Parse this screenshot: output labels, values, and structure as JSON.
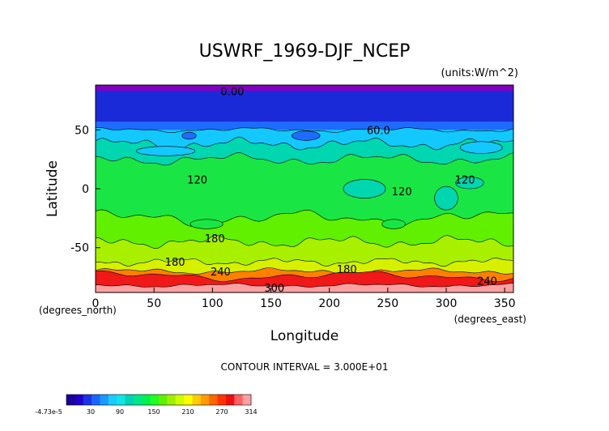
{
  "chart_data": {
    "type": "heatmap",
    "title": "USWRF_1969-DJF_NCEP",
    "units": "(units:W/m^2)",
    "xlabel": "Longitude",
    "ylabel": "Latitude",
    "x_unit_label": "(degrees_east)",
    "y_unit_label": "(degrees_north)",
    "xlim": [
      0,
      357.5
    ],
    "ylim": [
      -88,
      88
    ],
    "xticks": [
      0,
      50,
      100,
      150,
      200,
      250,
      300,
      350
    ],
    "yticks": [
      -50,
      0,
      50
    ],
    "contour_interval_text": "CONTOUR INTERVAL = 3.000E+01",
    "contour_labels": [
      {
        "text": "0.00",
        "lon": 117,
        "lat": 83
      },
      {
        "text": "60.0",
        "lon": 242,
        "lat": 50
      },
      {
        "text": "120",
        "lon": 87,
        "lat": 8
      },
      {
        "text": "120",
        "lon": 262,
        "lat": -2
      },
      {
        "text": "120",
        "lon": 316,
        "lat": 8
      },
      {
        "text": "180",
        "lon": 102,
        "lat": -42
      },
      {
        "text": "180",
        "lon": 68,
        "lat": -62
      },
      {
        "text": "180",
        "lon": 215,
        "lat": -68
      },
      {
        "text": "240",
        "lon": 107,
        "lat": -70
      },
      {
        "text": "300",
        "lon": 153,
        "lat": -84
      },
      {
        "text": "240",
        "lon": 335,
        "lat": -78
      }
    ],
    "lat_bands": [
      {
        "lat_top": 88,
        "lat_bottom": 83,
        "value": -4.73e-05
      },
      {
        "lat_top": 83,
        "lat_bottom": 57,
        "value": 15
      },
      {
        "lat_top": 57,
        "lat_bottom": 50,
        "value": 45
      },
      {
        "lat_top": 50,
        "lat_bottom": 38,
        "value": 75
      },
      {
        "lat_top": 38,
        "lat_bottom": 25,
        "value": 105
      },
      {
        "lat_top": 25,
        "lat_bottom": 10,
        "value": 135
      },
      {
        "lat_top": 10,
        "lat_bottom": -25,
        "value": 135
      },
      {
        "lat_top": -25,
        "lat_bottom": -45,
        "value": 165
      },
      {
        "lat_top": -45,
        "lat_bottom": -62,
        "value": 195
      },
      {
        "lat_top": -62,
        "lat_bottom": -70,
        "value": 225
      },
      {
        "lat_top": -70,
        "lat_bottom": -78,
        "value": 255
      },
      {
        "lat_top": -78,
        "lat_bottom": -83,
        "value": 285
      },
      {
        "lat_top": -83,
        "lat_bottom": -88,
        "value": 300
      }
    ],
    "colorbar": {
      "labels": [
        "-4.73e-5",
        "30",
        "90",
        "150",
        "210",
        "270",
        "314"
      ],
      "colors": [
        "#1a0099",
        "#1f00c8",
        "#1a33e6",
        "#1966ff",
        "#1a99ff",
        "#19ccff",
        "#10e6e6",
        "#00d2b4",
        "#00e68c",
        "#00f050",
        "#20ff20",
        "#60f000",
        "#9ff000",
        "#ccff00",
        "#ffff00",
        "#ffcc00",
        "#ff9900",
        "#ff6600",
        "#ff3300",
        "#ee1010",
        "#ff6060",
        "#ffa0a0"
      ]
    },
    "colors": {
      "purple": "#8000c0",
      "deep_blue": "#1a2ad9",
      "blue": "#1f6bff",
      "cyan": "#12c8ff",
      "teal": "#00d6b0",
      "green": "#19e645",
      "lime": "#a8f000",
      "yellow_green": "#d6f000",
      "orange": "#ff8000",
      "red": "#f01818",
      "pink": "#ffa0a0"
    }
  }
}
